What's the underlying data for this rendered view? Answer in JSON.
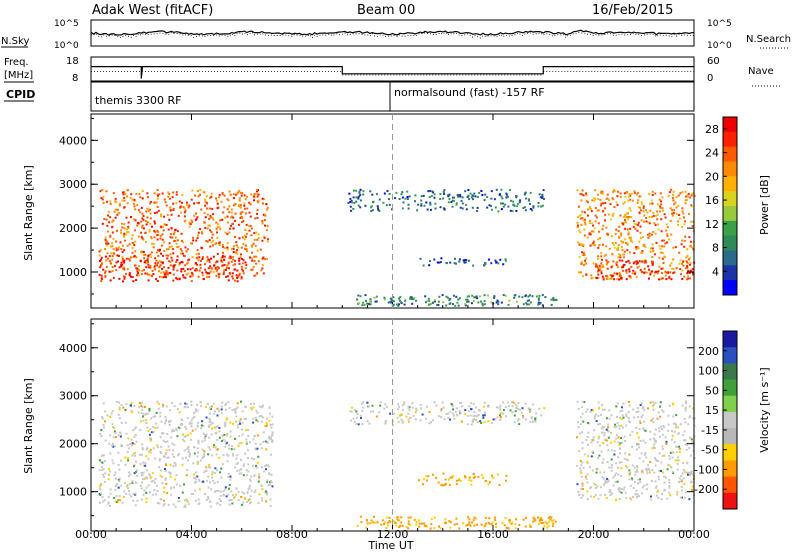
{
  "header": {
    "station": "Adak West (fitACF)",
    "beam": "Beam 00",
    "date": "16/Feb/2015"
  },
  "labels": {
    "nsky": "N.Sky",
    "nsearch": "N.Search",
    "freq": "Freq.",
    "mhz": "[MHz]",
    "nave": "Nave",
    "cpid": "CPID",
    "noise_tick_hi": "10^5",
    "noise_tick_lo": "10^0",
    "noise_right_hi": "10^5",
    "noise_right_lo": "10^0",
    "freq_tick_hi": "18",
    "freq_tick_lo": "8",
    "nave_tick_hi": "60",
    "nave_tick_lo": "0"
  },
  "cpid_segments": [
    {
      "label": "themis 3300 RF",
      "start_hour": 0
    },
    {
      "label": "normalsound (fast) -157 RF",
      "start_hour": 12
    }
  ],
  "colors": {
    "power": [
      "#0000ff",
      "#1a34a8",
      "#2a6a8a",
      "#2f8a5a",
      "#3aa04a",
      "#9ac93a",
      "#d8d41e",
      "#ffb000",
      "#ff8a00",
      "#ff5a00",
      "#ff2000",
      "#f00000"
    ],
    "velocity": [
      "#1a1aa0",
      "#2b4fc0",
      "#3a7a4a",
      "#3fa03a",
      "#7fd04a",
      "#c8c8c8",
      "#b8b8b8",
      "#ffd000",
      "#ff9a00",
      "#ff5500",
      "#ee1111"
    ],
    "axis_major": "#000000"
  },
  "chart_data": [
    {
      "type": "heatmap",
      "name": "power",
      "ylabel": "Slant Range [km]",
      "xlabel": "",
      "xlim": [
        0,
        24
      ],
      "ylim": [
        180,
        4600
      ],
      "x_ticks": [
        "00:00",
        "04:00",
        "08:00",
        "12:00",
        "16:00",
        "20:00",
        "00:00"
      ],
      "y_ticks": [
        1000,
        2000,
        3000,
        4000
      ],
      "colorbar_label": "Power [dB]",
      "colorbar_ticks": [
        4,
        8,
        12,
        16,
        20,
        24,
        28
      ],
      "colorbar_range": [
        0,
        30
      ],
      "echo_regions": [
        {
          "t0": 0.3,
          "t1": 7.0,
          "r0": 900,
          "r1": 2900,
          "level": 24
        },
        {
          "t0": 0.3,
          "t1": 6.0,
          "r0": 800,
          "r1": 1400,
          "level": 28
        },
        {
          "t0": 10.2,
          "t1": 18.0,
          "r0": 2400,
          "r1": 2900,
          "level": 6
        },
        {
          "t0": 13.0,
          "t1": 16.5,
          "r0": 1150,
          "r1": 1350,
          "level": 5
        },
        {
          "t0": 19.3,
          "t1": 24.0,
          "r0": 850,
          "r1": 2900,
          "level": 22
        },
        {
          "t0": 20.0,
          "t1": 24.0,
          "r0": 850,
          "r1": 1300,
          "level": 28
        }
      ]
    },
    {
      "type": "heatmap",
      "name": "velocity",
      "ylabel": "Slant Range [km]",
      "xlabel": "Time UT",
      "xlim": [
        0,
        24
      ],
      "ylim": [
        180,
        4600
      ],
      "x_ticks": [
        "00:00",
        "04:00",
        "08:00",
        "12:00",
        "16:00",
        "20:00",
        "00:00"
      ],
      "y_ticks": [
        1000,
        2000,
        3000,
        4000
      ],
      "colorbar_label": "Velocity [m s⁻¹]",
      "colorbar_ticks": [
        "200",
        "100",
        "50",
        "15",
        "-15",
        "-50",
        "-100",
        "-200"
      ],
      "echo_regions": [
        {
          "t0": 0.3,
          "t1": 7.2,
          "r0": 700,
          "r1": 2900,
          "level": 0
        },
        {
          "t0": 10.2,
          "t1": 18.0,
          "r0": 2400,
          "r1": 2900,
          "level": 0
        },
        {
          "t0": 13.0,
          "t1": 16.5,
          "r0": 1150,
          "r1": 1400,
          "level": -60
        },
        {
          "t0": 19.3,
          "t1": 24.0,
          "r0": 850,
          "r1": 2900,
          "level": 0
        }
      ]
    }
  ]
}
